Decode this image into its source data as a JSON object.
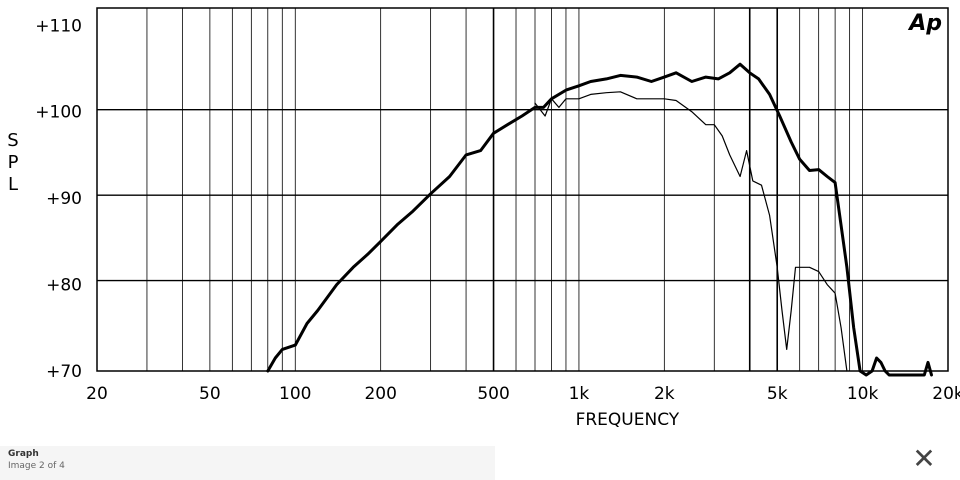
{
  "chart_data": {
    "type": "line",
    "title": "",
    "xlabel": "FREQUENCY",
    "ylabel": "SPL",
    "x_scale": "log",
    "xlim": [
      20,
      20000
    ],
    "ylim": [
      70,
      112
    ],
    "x_ticks": [
      {
        "value": 20,
        "label": "20"
      },
      {
        "value": 50,
        "label": "50"
      },
      {
        "value": 100,
        "label": "100"
      },
      {
        "value": 200,
        "label": "200"
      },
      {
        "value": 500,
        "label": "500"
      },
      {
        "value": 1000,
        "label": "1k"
      },
      {
        "value": 2000,
        "label": "2k"
      },
      {
        "value": 5000,
        "label": "5k"
      },
      {
        "value": 10000,
        "label": "10k"
      },
      {
        "value": 20000,
        "label": "20k"
      }
    ],
    "y_ticks": [
      {
        "value": 70,
        "label": "+70"
      },
      {
        "value": 80,
        "label": "+80"
      },
      {
        "value": 90,
        "label": "+90"
      },
      {
        "value": 100,
        "label": "+100"
      },
      {
        "value": 110,
        "label": "+110"
      }
    ],
    "grid": true,
    "series": [
      {
        "name": "",
        "style": "thick",
        "color": "#000000",
        "x": [
          80,
          85,
          90,
          100,
          110,
          120,
          140,
          160,
          180,
          200,
          230,
          260,
          300,
          350,
          400,
          450,
          500,
          560,
          630,
          700,
          750,
          800,
          900,
          1000,
          1100,
          1250,
          1400,
          1600,
          1800,
          2000,
          2200,
          2500,
          2800,
          3100,
          3400,
          3700,
          4000,
          4300,
          4700,
          5100,
          5600,
          6000,
          6500,
          7000,
          7500,
          8000,
          8300,
          8800,
          9300,
          9800,
          10300,
          10800,
          11200,
          11600,
          12000,
          12400,
          12800,
          16500,
          17000,
          17500
        ],
        "y": [
          70,
          71.5,
          72.5,
          73,
          75.5,
          77,
          80,
          82,
          83.5,
          85,
          87,
          88.5,
          90.5,
          92.5,
          95,
          95.5,
          97.5,
          98.5,
          99.5,
          100.5,
          100.5,
          101.5,
          102.5,
          103,
          103.5,
          103.8,
          104.2,
          104,
          103.5,
          104,
          104.5,
          103.5,
          104,
          103.8,
          104.5,
          105.5,
          104.5,
          103.8,
          102,
          99.5,
          96.5,
          94.5,
          93.2,
          93.3,
          92.5,
          91.8,
          88,
          82,
          75,
          70,
          69,
          70,
          71.5,
          71,
          70,
          69,
          69,
          69,
          71,
          69
        ]
      },
      {
        "name": "",
        "style": "thin",
        "color": "#000000",
        "x": [
          700,
          760,
          800,
          850,
          900,
          1000,
          1100,
          1250,
          1400,
          1600,
          1800,
          2000,
          2200,
          2500,
          2800,
          3000,
          3200,
          3400,
          3700,
          3900,
          4100,
          4400,
          4700,
          5000,
          5200,
          5400,
          5600,
          5800,
          6000,
          6500,
          7000,
          7500,
          8000,
          8400,
          8800
        ],
        "y": [
          101,
          99.5,
          101.5,
          100.5,
          101.5,
          101.5,
          102,
          102.2,
          102.3,
          101.5,
          101.5,
          101.5,
          101.3,
          100,
          98.5,
          98.5,
          97.2,
          95,
          92.5,
          95.5,
          92,
          91.5,
          88,
          82,
          77,
          72.5,
          77,
          82,
          82,
          82,
          81.5,
          80,
          79,
          75,
          70
        ]
      }
    ]
  },
  "logo_text": "Ap",
  "caption": {
    "title": "Graph",
    "subtitle": "Image 2 of 4"
  },
  "icons": {
    "close": "close-icon"
  }
}
